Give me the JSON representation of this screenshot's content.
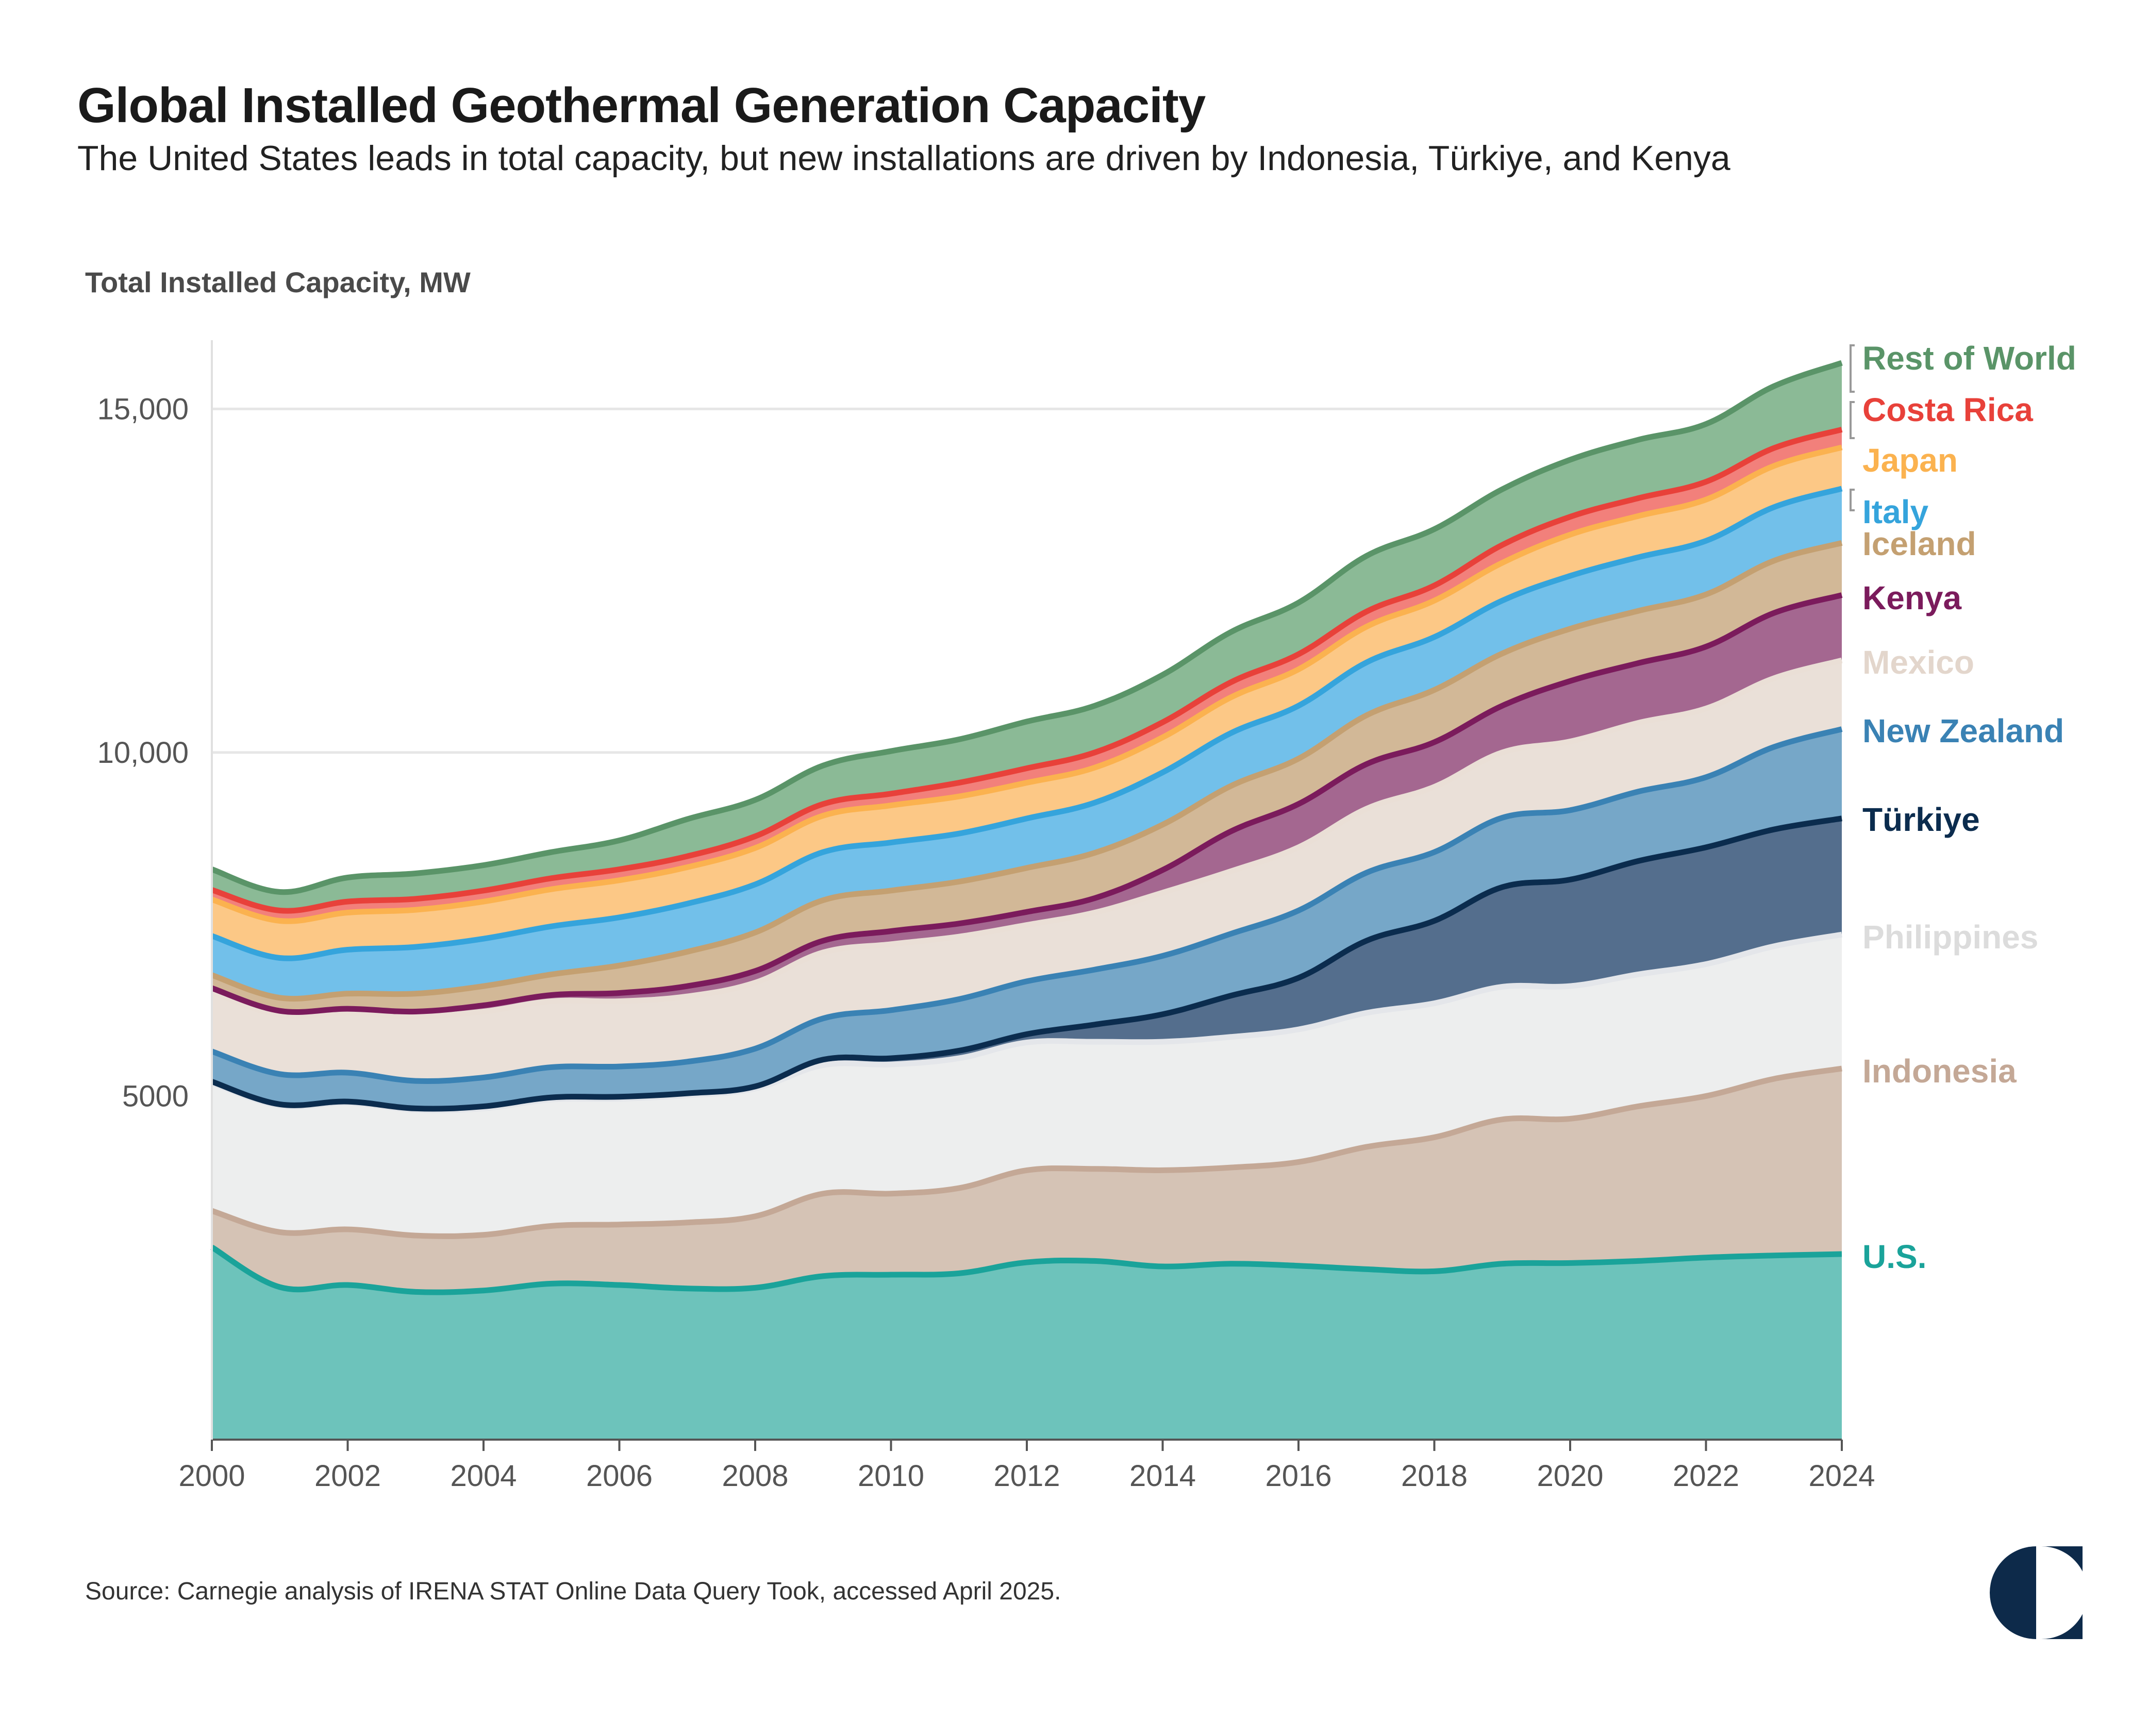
{
  "title": "Global Installed Geothermal Generation Capacity",
  "subtitle": "The United States leads in total capacity, but new installations are driven by Indonesia, Türkiye, and Kenya",
  "source": "Source: Carnegie analysis of IRENA STAT Online Data Query Took, accessed April 2025.",
  "chart_data": {
    "type": "area",
    "stacked": true,
    "ylabel": "Total Installed Capacity, MW",
    "xlabel": "",
    "x": [
      2000,
      2001,
      2002,
      2003,
      2004,
      2005,
      2006,
      2007,
      2008,
      2009,
      2010,
      2011,
      2012,
      2013,
      2014,
      2015,
      2016,
      2017,
      2018,
      2019,
      2020,
      2021,
      2022,
      2023,
      2024
    ],
    "xticks": [
      "2000",
      "2002",
      "2004",
      "2006",
      "2008",
      "2010",
      "2012",
      "2014",
      "2016",
      "2018",
      "2020",
      "2022",
      "2024"
    ],
    "xlim": [
      2000,
      2024
    ],
    "ylim": [
      0,
      16000
    ],
    "yticks": [
      5000,
      10000,
      15000
    ],
    "ytick_labels": [
      "5000",
      "10,000",
      "15,000"
    ],
    "grid": "horizontal",
    "legend": "direct labels at right end",
    "series": [
      {
        "name": "U.S.",
        "color": "#1aa39a",
        "fill": "#6dc3bb",
        "values": [
          2800,
          2220,
          2250,
          2150,
          2170,
          2270,
          2250,
          2200,
          2210,
          2380,
          2400,
          2420,
          2580,
          2600,
          2520,
          2560,
          2530,
          2480,
          2450,
          2560,
          2570,
          2600,
          2650,
          2680,
          2700
        ]
      },
      {
        "name": "Indonesia",
        "color": "#c4a896",
        "fill": "#d5c3b5",
        "values": [
          530,
          800,
          810,
          820,
          810,
          840,
          880,
          960,
          1040,
          1200,
          1180,
          1240,
          1340,
          1340,
          1400,
          1400,
          1510,
          1780,
          1950,
          2100,
          2100,
          2250,
          2350,
          2570,
          2700
        ]
      },
      {
        "name": "Philippines",
        "color": "#e4e6ea",
        "fill": "#edeeee",
        "values": [
          1860,
          1840,
          1840,
          1830,
          1840,
          1840,
          1830,
          1850,
          1860,
          1870,
          1880,
          1890,
          1860,
          1850,
          1870,
          1900,
          1930,
          1950,
          1950,
          1930,
          1930,
          1920,
          1920,
          1930,
          1950
        ]
      },
      {
        "name": "Türkiye",
        "color": "#0b2c4e",
        "fill": "#546e8d",
        "values": [
          20,
          20,
          20,
          20,
          30,
          30,
          30,
          30,
          30,
          80,
          90,
          110,
          120,
          250,
          400,
          600,
          750,
          1050,
          1200,
          1450,
          1550,
          1650,
          1700,
          1700,
          1690
        ]
      },
      {
        "name": "New Zealand",
        "color": "#3a82b4",
        "fill": "#76a7c8",
        "values": [
          440,
          440,
          420,
          400,
          420,
          440,
          440,
          460,
          550,
          600,
          700,
          750,
          770,
          800,
          850,
          900,
          980,
          990,
          1000,
          1010,
          1010,
          1010,
          1020,
          1200,
          1300
        ]
      },
      {
        "name": "Mexico",
        "color": "#eadfd6",
        "fill": "#eae0d8",
        "values": [
          860,
          860,
          870,
          940,
          960,
          960,
          950,
          950,
          960,
          960,
          960,
          910,
          820,
          830,
          920,
          910,
          920,
          930,
          950,
          950,
          1000,
          1000,
          1000,
          1000,
          1000
        ]
      },
      {
        "name": "Kenya",
        "color": "#7b1b5c",
        "fill": "#a46790",
        "values": [
          60,
          60,
          60,
          70,
          90,
          90,
          120,
          150,
          170,
          170,
          190,
          190,
          190,
          210,
          330,
          580,
          630,
          650,
          650,
          680,
          880,
          870,
          900,
          950,
          950
        ]
      },
      {
        "name": "Iceland",
        "color": "#c4a071",
        "fill": "#d2b897",
        "values": [
          190,
          190,
          220,
          260,
          280,
          300,
          400,
          500,
          560,
          590,
          590,
          610,
          640,
          660,
          660,
          660,
          660,
          710,
          760,
          760,
          760,
          760,
          760,
          760,
          760
        ]
      },
      {
        "name": "Italy",
        "color": "#35a4dc",
        "fill": "#72c0ea",
        "values": [
          570,
          580,
          640,
          680,
          690,
          700,
          700,
          700,
          700,
          700,
          700,
          700,
          720,
          730,
          760,
          770,
          770,
          770,
          770,
          770,
          770,
          780,
          780,
          780,
          790
        ]
      },
      {
        "name": "Japan",
        "color": "#fbb24f",
        "fill": "#fcc886",
        "values": [
          530,
          540,
          540,
          540,
          540,
          540,
          540,
          530,
          530,
          530,
          540,
          540,
          520,
          510,
          510,
          520,
          530,
          520,
          530,
          550,
          600,
          600,
          600,
          600,
          600
        ]
      },
      {
        "name": "Costa Rica",
        "color": "#e8413a",
        "fill": "#f2807b",
        "values": [
          140,
          150,
          160,
          160,
          160,
          160,
          160,
          160,
          170,
          170,
          170,
          200,
          210,
          220,
          220,
          220,
          220,
          220,
          220,
          260,
          260,
          260,
          260,
          260,
          260
        ]
      },
      {
        "name": "Rest of World",
        "color": "#5a9468",
        "fill": "#8bba96",
        "values": [
          300,
          270,
          350,
          370,
          370,
          380,
          420,
          540,
          530,
          560,
          620,
          630,
          680,
          680,
          690,
          730,
          750,
          810,
          820,
          810,
          830,
          850,
          840,
          900,
          970
        ]
      }
    ]
  }
}
